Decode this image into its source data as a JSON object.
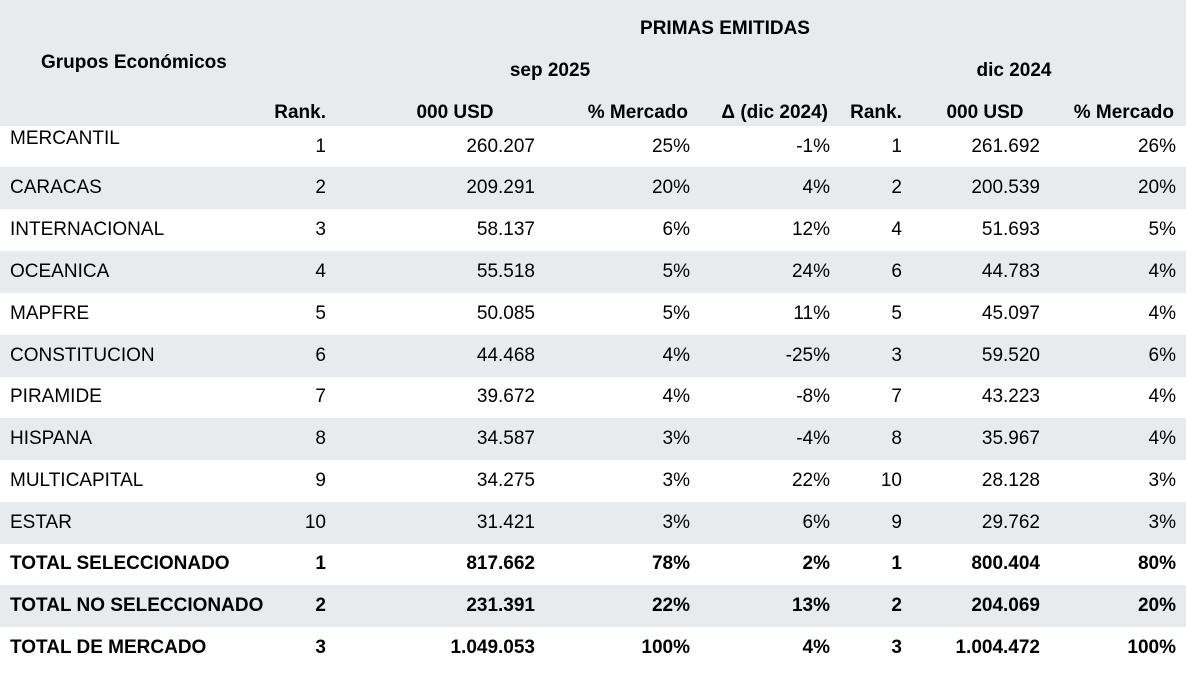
{
  "header": {
    "section_title": "PRIMAS EMITIDAS",
    "group_label": "Grupos Económicos",
    "period_current": "sep 2025",
    "period_previous": "dic 2024",
    "columns": {
      "rank_current": "Rank.",
      "usd_current": "000 USD",
      "market_current": "% Mercado",
      "delta": "Δ (dic  2024)",
      "rank_previous": "Rank.",
      "usd_previous": "000 USD",
      "market_previous": "% Mercado"
    }
  },
  "rows": [
    {
      "name": "MERCANTIL",
      "rank": "1",
      "usd": "260.207",
      "market": "25%",
      "delta": "-1%",
      "rank_prev": "1",
      "usd_prev": "261.692",
      "market_prev": "26%",
      "bold": false
    },
    {
      "name": "CARACAS",
      "rank": "2",
      "usd": "209.291",
      "market": "20%",
      "delta": "4%",
      "rank_prev": "2",
      "usd_prev": "200.539",
      "market_prev": "20%",
      "bold": false
    },
    {
      "name": "INTERNACIONAL",
      "rank": "3",
      "usd": "58.137",
      "market": "6%",
      "delta": "12%",
      "rank_prev": "4",
      "usd_prev": "51.693",
      "market_prev": "5%",
      "bold": false
    },
    {
      "name": "OCEANICA",
      "rank": "4",
      "usd": "55.518",
      "market": "5%",
      "delta": "24%",
      "rank_prev": "6",
      "usd_prev": "44.783",
      "market_prev": "4%",
      "bold": false
    },
    {
      "name": "MAPFRE",
      "rank": "5",
      "usd": "50.085",
      "market": "5%",
      "delta": "11%",
      "rank_prev": "5",
      "usd_prev": "45.097",
      "market_prev": "4%",
      "bold": false
    },
    {
      "name": "CONSTITUCION",
      "rank": "6",
      "usd": "44.468",
      "market": "4%",
      "delta": "-25%",
      "rank_prev": "3",
      "usd_prev": "59.520",
      "market_prev": "6%",
      "bold": false
    },
    {
      "name": "PIRAMIDE",
      "rank": "7",
      "usd": "39.672",
      "market": "4%",
      "delta": "-8%",
      "rank_prev": "7",
      "usd_prev": "43.223",
      "market_prev": "4%",
      "bold": false
    },
    {
      "name": "HISPANA",
      "rank": "8",
      "usd": "34.587",
      "market": "3%",
      "delta": "-4%",
      "rank_prev": "8",
      "usd_prev": "35.967",
      "market_prev": "4%",
      "bold": false
    },
    {
      "name": "MULTICAPITAL",
      "rank": "9",
      "usd": "34.275",
      "market": "3%",
      "delta": "22%",
      "rank_prev": "10",
      "usd_prev": "28.128",
      "market_prev": "3%",
      "bold": false
    },
    {
      "name": "ESTAR",
      "rank": "10",
      "usd": "31.421",
      "market": "3%",
      "delta": "6%",
      "rank_prev": "9",
      "usd_prev": "29.762",
      "market_prev": "3%",
      "bold": false
    },
    {
      "name": "TOTAL SELECCIONADO",
      "rank": "1",
      "usd": "817.662",
      "market": "78%",
      "delta": "2%",
      "rank_prev": "1",
      "usd_prev": "800.404",
      "market_prev": "80%",
      "bold": true
    },
    {
      "name": "TOTAL NO SELECCIONADO",
      "rank": "2",
      "usd": "231.391",
      "market": "22%",
      "delta": "13%",
      "rank_prev": "2",
      "usd_prev": "204.069",
      "market_prev": "20%",
      "bold": true
    },
    {
      "name": " TOTAL DE MERCADO",
      "rank": "3",
      "usd": "1.049.053",
      "market": "100%",
      "delta": "4%",
      "rank_prev": "3",
      "usd_prev": "1.004.472",
      "market_prev": "100%",
      "bold": true
    }
  ],
  "colors": {
    "band": "#e8ebee",
    "text": "#000000"
  }
}
